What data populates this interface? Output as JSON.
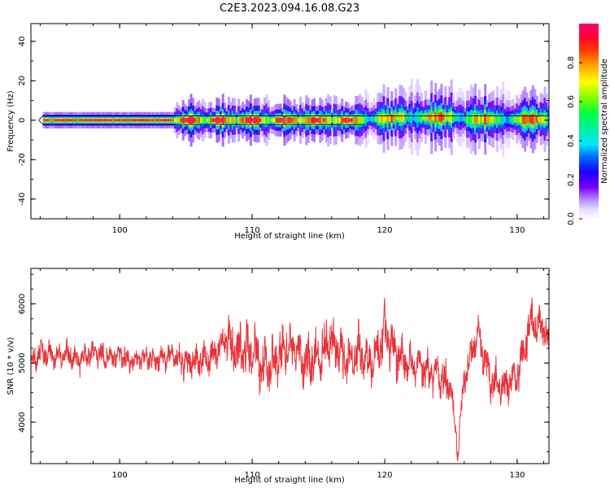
{
  "figure": {
    "title": "C2E3.2023.094.16.08.G23"
  },
  "chart_data": [
    {
      "type": "heatmap",
      "xlabel": "Height of straight line (km)",
      "ylabel": "Frequency (Hz)",
      "xlim": [
        93.3,
        132.4
      ],
      "ylim": [
        -50,
        49
      ],
      "xticks": [
        100,
        110,
        120,
        130
      ],
      "yticks": [
        -40,
        -20,
        0,
        20,
        40
      ],
      "grid": false,
      "colorbar": {
        "label": "Normalized spectral amplitude",
        "range": [
          0,
          1
        ],
        "ticks": [
          "0.0",
          "0.2",
          "0.4",
          "0.6",
          "0.8"
        ]
      },
      "ridge": {
        "x_start": 94.2,
        "x_end": 132.4,
        "peak_frequency_segments": [
          {
            "x": [
              94.2,
              118.5
            ],
            "frequency": 0
          },
          {
            "x": [
              120.5,
              126
            ],
            "frequency": 1.5
          },
          {
            "x": [
              126,
              132.4
            ],
            "frequency": 0.5
          }
        ]
      }
    },
    {
      "type": "line",
      "xlabel": "Height of straight line (km)",
      "ylabel": "SNR (10 * v/v)",
      "xlim": [
        93.3,
        132.4
      ],
      "ylim": [
        3300,
        6600
      ],
      "xticks": [
        100,
        110,
        120,
        130
      ],
      "yticks": [
        4000,
        5000,
        6000
      ],
      "grid": false,
      "series": [
        {
          "color": "#e8343a",
          "x": [
            93.3,
            94.0,
            95.0,
            96.0,
            97.0,
            98.0,
            99.0,
            100.0,
            101.0,
            102.0,
            103.0,
            104.0,
            105.0,
            106.0,
            107.0,
            108.0,
            109.0,
            110.0,
            111.0,
            112.0,
            113.0,
            114.0,
            115.0,
            116.0,
            117.0,
            118.0,
            119.0,
            120.0,
            121.0,
            122.0,
            123.0,
            124.0,
            125.0,
            125.5,
            126.0,
            127.0,
            128.0,
            129.0,
            130.0,
            131.0,
            132.0,
            132.4
          ],
          "y": [
            5000,
            5200,
            5100,
            5150,
            5050,
            5200,
            5100,
            5150,
            5000,
            5100,
            5050,
            5150,
            5000,
            5050,
            5100,
            5400,
            5200,
            5250,
            4900,
            5100,
            5300,
            5000,
            5100,
            5400,
            5000,
            5200,
            4950,
            5500,
            5100,
            5000,
            4900,
            4800,
            4600,
            3500,
            4700,
            5500,
            4700,
            4600,
            4800,
            5700,
            5600,
            5300
          ]
        }
      ]
    }
  ]
}
